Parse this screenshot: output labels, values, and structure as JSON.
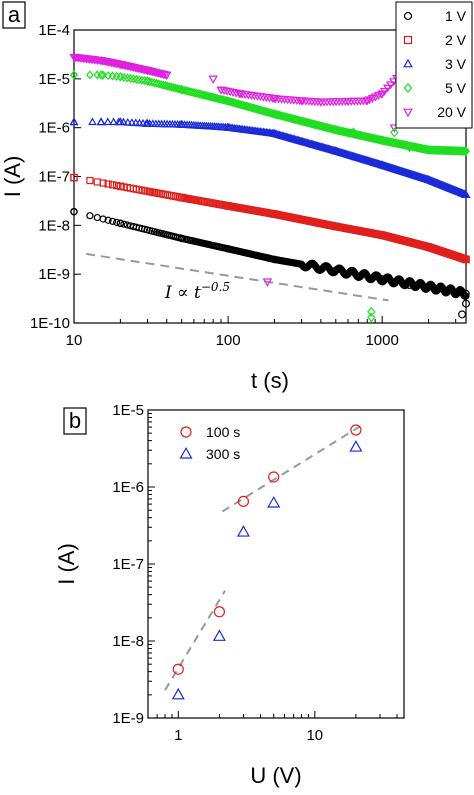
{
  "chart_data": [
    {
      "panel_label": "a",
      "type": "scatter",
      "xlabel": "t (s)",
      "ylabel": "I (A)",
      "xscale": "log",
      "yscale": "log",
      "xlim": [
        10,
        3500
      ],
      "ylim": [
        1e-10,
        0.0001
      ],
      "x_ticks": [
        "10",
        "100",
        "1000"
      ],
      "y_ticks": [
        "1E-10",
        "1E-9",
        "1E-8",
        "1E-7",
        "1E-6",
        "1E-5",
        "1E-4"
      ],
      "legend_position": "top-right",
      "series": [
        {
          "name": "1 V",
          "marker": "circle",
          "color": "#000000",
          "x": [
            10,
            20,
            50,
            100,
            200,
            500,
            1000,
            2000,
            3500
          ],
          "y": [
            1.9e-08,
            1.1e-08,
            5.4e-09,
            3.3e-09,
            2e-09,
            1.2e-09,
            8e-10,
            5.5e-10,
            4e-10
          ]
        },
        {
          "name": "2 V",
          "marker": "square",
          "color": "#e0201c",
          "x": [
            10,
            20,
            50,
            100,
            200,
            500,
            1000,
            2000,
            3500
          ],
          "y": [
            9.5e-08,
            6.3e-08,
            3.7e-08,
            2.5e-08,
            1.7e-08,
            9.5e-09,
            6.3e-09,
            3.6e-09,
            2e-09
          ]
        },
        {
          "name": "3 V",
          "marker": "triangle",
          "color": "#1a2bd6",
          "x": [
            10,
            15,
            20,
            30,
            50,
            100,
            200,
            500,
            1000,
            2000,
            3500
          ],
          "y": [
            1.3e-06,
            1.3e-06,
            1.3e-06,
            1.2e-06,
            1.15e-06,
            1e-06,
            7.5e-07,
            3.3e-07,
            1.7e-07,
            8.5e-08,
            4.2e-08
          ]
        },
        {
          "name": "5 V",
          "marker": "diamond",
          "color": "#22dd22",
          "x": [
            10,
            15,
            20,
            30,
            50,
            100,
            200,
            500,
            1000,
            2000,
            3500
          ],
          "y": [
            1.2e-05,
            1.2e-05,
            1.1e-05,
            9e-06,
            6e-06,
            3.5e-06,
            1.9e-06,
            9e-07,
            5.5e-07,
            3.5e-07,
            3.3e-07
          ]
        },
        {
          "name": "20 V",
          "marker": "inverted-triangle",
          "color": "#e020e0",
          "x": [
            10,
            15,
            20,
            30,
            40,
            90,
            120,
            200,
            300,
            400,
            600,
            800,
            1000,
            1300
          ],
          "y": [
            2.8e-05,
            2.4e-05,
            2e-05,
            1.5e-05,
            1.2e-05,
            6e-06,
            5e-06,
            4e-06,
            3.6e-06,
            3.4e-06,
            3.5e-06,
            3.6e-06,
            5e-06,
            1.2e-05
          ]
        }
      ],
      "scattered_points": [
        {
          "series": "20 V",
          "x": [
            80,
            180,
            1200,
            1300,
            2300
          ],
          "y": [
            1e-05,
            7e-10,
            1e-06,
            1.5e-05,
            3e-06
          ]
        },
        {
          "series": "5 V",
          "x": [
            650,
            1200,
            1500,
            850,
            850
          ],
          "y": [
            8e-07,
            8e-07,
            4e-07,
            1.7e-10,
            1.3e-10
          ]
        },
        {
          "series": "1 V",
          "x": [
            1500,
            3500,
            3300
          ],
          "y": [
            6e-10,
            2.5e-10,
            1.5e-10
          ]
        }
      ],
      "guide_line": {
        "x": [
          12,
          1100
        ],
        "y": [
          2.6e-09,
          2.9e-10
        ],
        "style": "dashed",
        "color": "#999999"
      },
      "annotation_formula": {
        "var": "I",
        "rel": "∝",
        "base": "t",
        "exp": "−0.5"
      }
    },
    {
      "panel_label": "b",
      "type": "scatter",
      "xlabel": "U (V)",
      "ylabel": "I (A)",
      "xscale": "log",
      "yscale": "log",
      "xlim": [
        0.6,
        45
      ],
      "ylim": [
        1e-09,
        1e-05
      ],
      "x_ticks": [
        "1",
        "10"
      ],
      "y_ticks": [
        "1E-9",
        "1E-8",
        "1E-7",
        "1E-6",
        "1E-5"
      ],
      "legend_position": "top-left",
      "series": [
        {
          "name": "100 s",
          "marker": "open-circle",
          "color": "#e0201c",
          "x": [
            1,
            2,
            3,
            5,
            20
          ],
          "y": [
            4.3e-09,
            2.4e-08,
            6.5e-07,
            1.35e-06,
            5.5e-06
          ]
        },
        {
          "name": "300 s",
          "marker": "open-triangle",
          "color": "#1a2bd6",
          "x": [
            1,
            2,
            3,
            5,
            20
          ],
          "y": [
            2e-09,
            1.15e-08,
            2.6e-07,
            6.2e-07,
            3.3e-06
          ]
        }
      ],
      "guide_lines": [
        {
          "x": [
            0.8,
            2.2
          ],
          "y": [
            2.3e-09,
            4.5e-08
          ],
          "style": "dashed",
          "color": "#999999"
        },
        {
          "x": [
            2.1,
            22
          ],
          "y": [
            4.8e-07,
            6.3e-06
          ],
          "style": "dashed",
          "color": "#999999"
        }
      ]
    }
  ]
}
